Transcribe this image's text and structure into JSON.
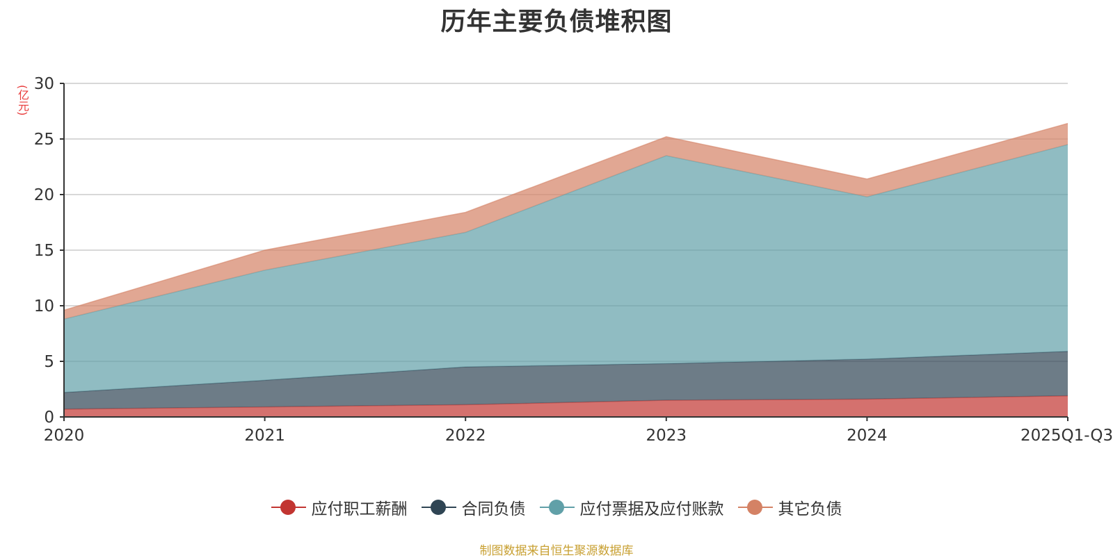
{
  "colors": {
    "payroll": "#c23531",
    "contract": "#2f4554",
    "payables": "#61a0a8",
    "other": "#d48265",
    "grid": "#cccccc",
    "axis": "#333333",
    "unit": "#e83a3a",
    "source": "#c8a032"
  },
  "chart_data": {
    "type": "area",
    "stacked": true,
    "title": "历年主要负债堆积图",
    "y_unit": "(亿元)",
    "categories": [
      "2020",
      "2021",
      "2022",
      "2023",
      "2024",
      "2025Q1-Q3"
    ],
    "ylim": [
      0,
      30
    ],
    "yticks": [
      0,
      5,
      10,
      15,
      20,
      25,
      30
    ],
    "grid": true,
    "legend_position": "bottom-center",
    "series": [
      {
        "name": "应付职工薪酬",
        "color_key": "payroll",
        "values": [
          0.7,
          0.9,
          1.1,
          1.5,
          1.6,
          1.9
        ]
      },
      {
        "name": "合同负债",
        "color_key": "contract",
        "values": [
          1.5,
          2.4,
          3.4,
          3.3,
          3.6,
          4.0
        ]
      },
      {
        "name": "应付票据及应付账款",
        "color_key": "payables",
        "values": [
          6.6,
          9.9,
          12.1,
          18.7,
          14.6,
          18.6
        ]
      },
      {
        "name": "其它负债",
        "color_key": "other",
        "values": [
          0.8,
          1.8,
          1.8,
          1.7,
          1.6,
          1.9
        ]
      }
    ]
  },
  "legend": [
    {
      "label": "应付职工薪酬",
      "color_key": "payroll"
    },
    {
      "label": "合同负债",
      "color_key": "contract"
    },
    {
      "label": "应付票据及应付账款",
      "color_key": "payables"
    },
    {
      "label": "其它负债",
      "color_key": "other"
    }
  ],
  "source_note": "制图数据来自恒生聚源数据库"
}
